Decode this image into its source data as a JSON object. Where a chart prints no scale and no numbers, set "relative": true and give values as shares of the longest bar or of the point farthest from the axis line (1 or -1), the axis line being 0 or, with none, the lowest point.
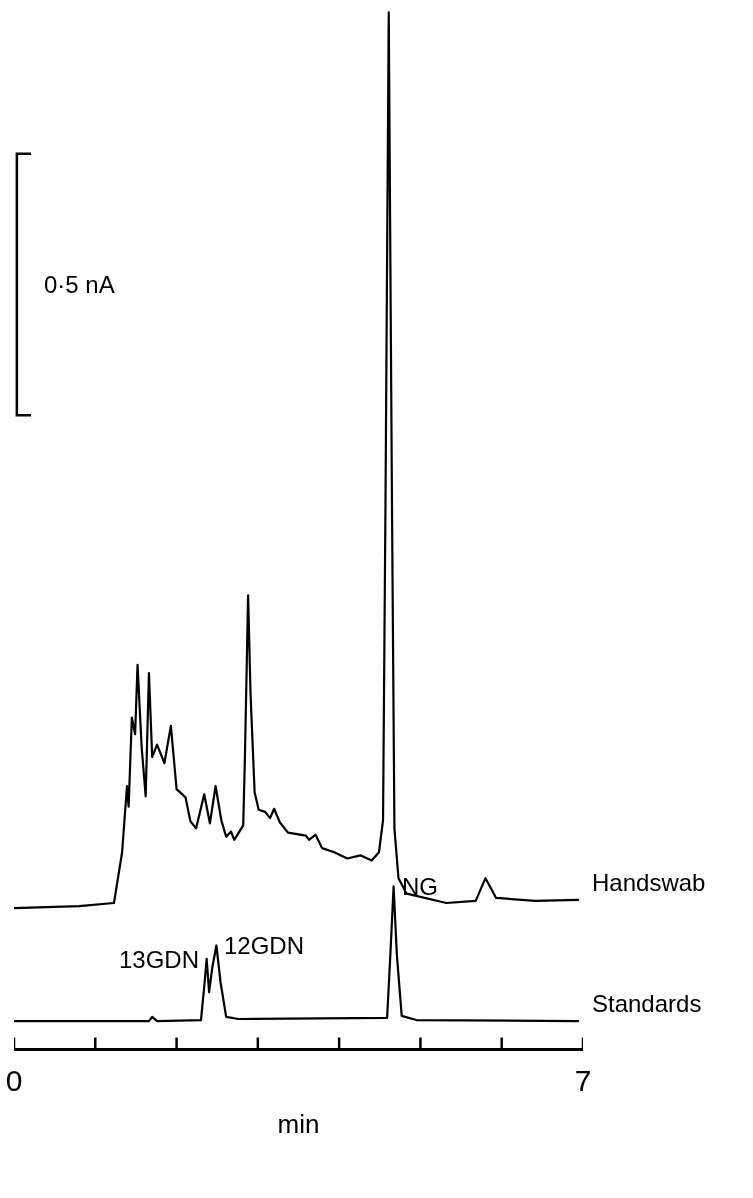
{
  "chart_data": {
    "type": "line",
    "relative": true,
    "xlabel": "min",
    "xlim": [
      0,
      7
    ],
    "xticks": [
      0,
      {
        "value": 1,
        "label": null
      },
      {
        "value": 2,
        "label": null
      },
      {
        "value": 3,
        "label": null
      },
      {
        "value": 4,
        "label": null
      },
      {
        "value": 5,
        "label": null
      },
      {
        "value": 6,
        "label": null
      },
      7
    ],
    "legend": false,
    "marker": "none",
    "line_style": "solid",
    "series": [
      {
        "name": "Handswab",
        "color": "#000000",
        "x": [
          0,
          0.8,
          1.23,
          1.33,
          1.39,
          1.41,
          1.45,
          1.49,
          1.52,
          1.57,
          1.62,
          1.66,
          1.7,
          1.76,
          1.85,
          1.93,
          2.0,
          2.11,
          2.17,
          2.24,
          2.34,
          2.41,
          2.48,
          2.55,
          2.61,
          2.67,
          2.71,
          2.82,
          2.84,
          2.88,
          2.91,
          2.96,
          3.01,
          3.09,
          3.15,
          3.2,
          3.27,
          3.37,
          3.59,
          3.63,
          3.71,
          3.79,
          3.94,
          4.1,
          4.26,
          4.4,
          4.49,
          4.54,
          4.57,
          4.61,
          4.65,
          4.68,
          4.73,
          4.83,
          5.32,
          5.68,
          5.8,
          5.93,
          6.41,
          6.94
        ],
        "values": [
          0.135,
          0.137,
          0.14,
          0.189,
          0.253,
          0.233,
          0.319,
          0.303,
          0.37,
          0.291,
          0.243,
          0.362,
          0.281,
          0.293,
          0.275,
          0.311,
          0.25,
          0.242,
          0.219,
          0.212,
          0.245,
          0.217,
          0.253,
          0.22,
          0.204,
          0.209,
          0.201,
          0.215,
          0.278,
          0.437,
          0.342,
          0.247,
          0.23,
          0.228,
          0.222,
          0.231,
          0.218,
          0.208,
          0.205,
          0.201,
          0.206,
          0.193,
          0.189,
          0.183,
          0.186,
          0.181,
          0.189,
          0.22,
          0.525,
          1.0,
          0.525,
          0.212,
          0.164,
          0.149,
          0.14,
          0.142,
          0.164,
          0.145,
          0.142,
          0.143
        ]
      },
      {
        "name": "Standards",
        "color": "#000000",
        "x": [
          0,
          1.66,
          1.7,
          1.76,
          2.3,
          2.34,
          2.37,
          2.4,
          2.44,
          2.49,
          2.54,
          2.61,
          2.76,
          4.59,
          4.63,
          4.67,
          4.71,
          4.77,
          4.95,
          6.94
        ],
        "values": [
          0.026,
          0.026,
          0.03,
          0.026,
          0.027,
          0.059,
          0.086,
          0.054,
          0.078,
          0.099,
          0.064,
          0.03,
          0.028,
          0.029,
          0.09,
          0.156,
          0.09,
          0.031,
          0.027,
          0.026
        ]
      }
    ],
    "annotations": [
      {
        "text": "13GDN",
        "x": 2.37,
        "y": 0.086
      },
      {
        "text": "12GDN",
        "x": 2.49,
        "y": 0.099
      },
      {
        "text": "NG",
        "x": 4.67,
        "y": 0.156
      },
      "0·5 nA"
    ]
  }
}
